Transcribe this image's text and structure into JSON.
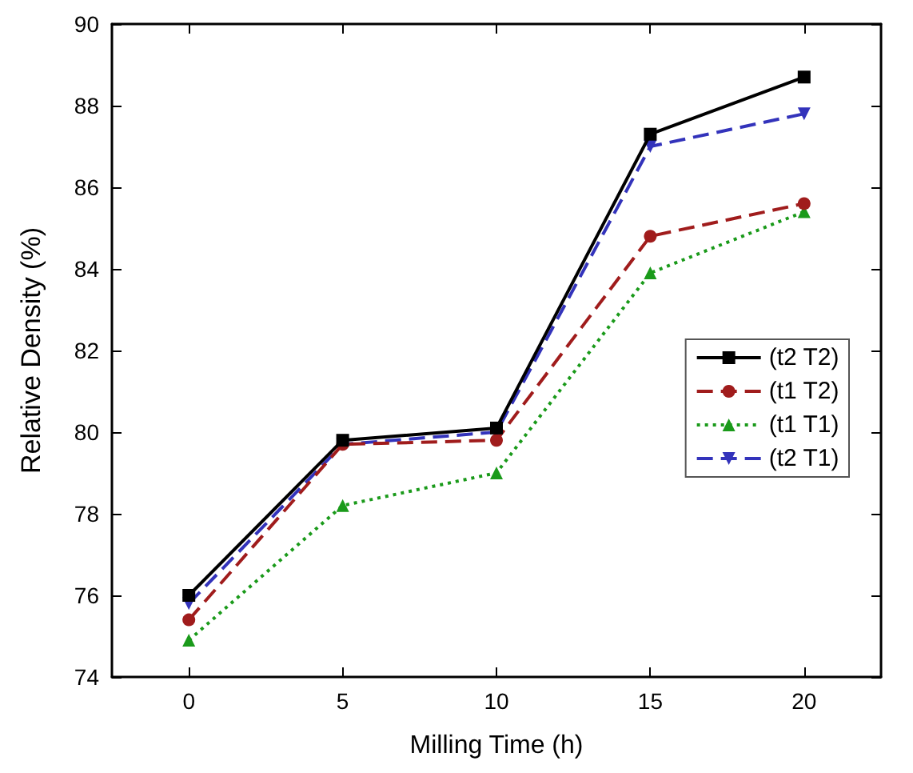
{
  "chart_data": {
    "type": "line",
    "xlabel": "Milling Time (h)",
    "ylabel": "Relative Density (%)",
    "x": [
      0,
      5,
      10,
      15,
      20
    ],
    "xlim": [
      -2.5,
      22.5
    ],
    "xticks": [
      0,
      5,
      10,
      15,
      20
    ],
    "ylim": [
      74,
      90
    ],
    "yticks": [
      74,
      76,
      78,
      80,
      82,
      84,
      86,
      88,
      90
    ],
    "grid": false,
    "legend": "right",
    "series": [
      {
        "name": "(t2 T2)",
        "color": "#000000",
        "marker": "square",
        "line_style": "solid",
        "values": [
          76.0,
          79.8,
          80.1,
          87.3,
          88.7
        ]
      },
      {
        "name": "(t1 T2)",
        "color": "#a01c1c",
        "marker": "circle",
        "line_style": "dashed",
        "values": [
          75.4,
          79.7,
          79.8,
          84.8,
          85.6
        ]
      },
      {
        "name": "(t1 T1)",
        "color": "#1a9a1a",
        "marker": "triangle",
        "line_style": "dotted",
        "values": [
          74.9,
          78.2,
          79.0,
          83.9,
          85.4
        ]
      },
      {
        "name": "(t2 T1)",
        "color": "#3333bb",
        "marker": "triangle-down",
        "line_style": "dashed",
        "values": [
          75.8,
          79.7,
          80.0,
          87.0,
          87.8
        ]
      }
    ]
  }
}
